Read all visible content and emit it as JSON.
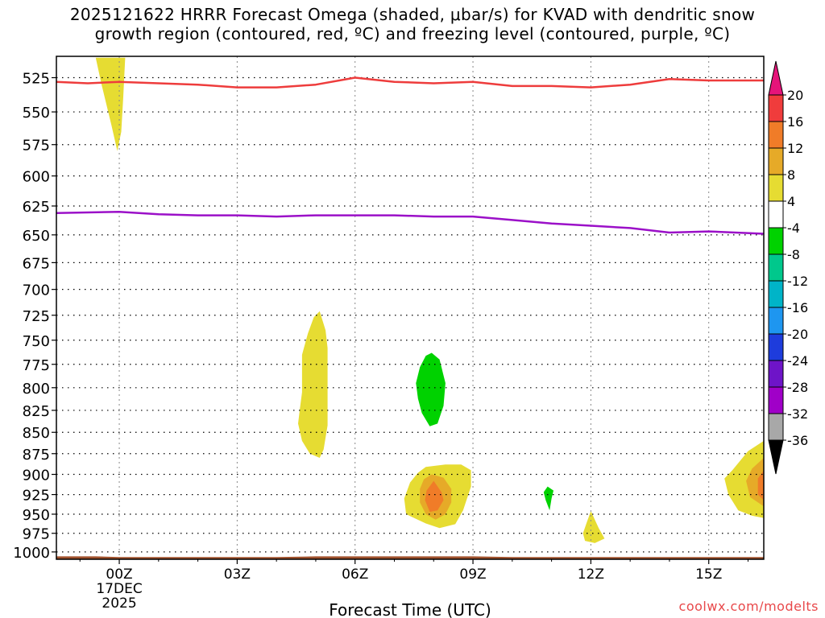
{
  "title": {
    "line1": "2025121622 HRRR Forecast Omega (shaded, μbar/s) for KVAD with dendritic snow",
    "line2": "growth region (contoured, red, ºC) and freezing level (contoured, purple, ºC)"
  },
  "site_url": "coolwx.com/modelts",
  "chart_data": {
    "type": "heatmap",
    "xlabel": "Forecast Time (UTC)",
    "ylabel": "",
    "x_unit": "forecast hour from 00Z 17DEC 2025",
    "xlim": [
      -1.6,
      16.4
    ],
    "ylim": [
      1010,
      510
    ],
    "y_scale": "log-pressure (hPa)",
    "grid": true,
    "x_ticks": [
      {
        "x": 0,
        "label": "00Z",
        "sublabels": [
          "17DEC",
          "2025"
        ]
      },
      {
        "x": 3,
        "label": "03Z"
      },
      {
        "x": 6,
        "label": "06Z"
      },
      {
        "x": 9,
        "label": "09Z"
      },
      {
        "x": 12,
        "label": "12Z"
      },
      {
        "x": 15,
        "label": "15Z"
      }
    ],
    "y_ticks": [
      "525",
      "550",
      "575",
      "600",
      "625",
      "650",
      "675",
      "700",
      "725",
      "750",
      "775",
      "800",
      "825",
      "850",
      "875",
      "900",
      "925",
      "950",
      "975",
      "1000"
    ],
    "colorbar": {
      "labels": [
        "20",
        "16",
        "12",
        "8",
        "4",
        "-4",
        "-8",
        "-12",
        "-16",
        "-20",
        "-24",
        "-28",
        "-32",
        "-36"
      ],
      "colors": [
        "#e6005a",
        "#f03c3c",
        "#f07c28",
        "#e6aa28",
        "#e6dc32",
        "#ffffff",
        "#00d200",
        "#00c88c",
        "#00b4c8",
        "#1e96f0",
        "#1e3cdc",
        "#6e14c8",
        "#a000c8",
        "#a8a8a8",
        "#000000"
      ],
      "top_triangle_color": "#e6147a",
      "bottom_triangle_color": "#000000"
    },
    "series": [
      {
        "kind": "line",
        "color": "#ee3c3c",
        "points": [
          [
            -1.6,
            528
          ],
          [
            -0.8,
            529
          ],
          [
            0,
            528
          ],
          [
            1,
            529
          ],
          [
            2,
            530
          ],
          [
            3,
            532
          ],
          [
            4,
            532
          ],
          [
            5,
            530
          ],
          [
            6,
            525
          ],
          [
            7,
            528
          ],
          [
            8,
            529
          ],
          [
            9,
            528
          ],
          [
            10,
            531
          ],
          [
            11,
            531
          ],
          [
            12,
            532
          ],
          [
            13,
            530
          ],
          [
            14,
            526
          ],
          [
            15,
            527
          ],
          [
            16.4,
            527
          ]
        ]
      },
      {
        "kind": "line",
        "color": "#9b10c8",
        "points": [
          [
            -1.6,
            631
          ],
          [
            0,
            630
          ],
          [
            1,
            632
          ],
          [
            2,
            633
          ],
          [
            3,
            633
          ],
          [
            4,
            634
          ],
          [
            5,
            633
          ],
          [
            6,
            633
          ],
          [
            7,
            633
          ],
          [
            8,
            634
          ],
          [
            9,
            634
          ],
          [
            10,
            637
          ],
          [
            11,
            640
          ],
          [
            12,
            642
          ],
          [
            13,
            644
          ],
          [
            14,
            648
          ],
          [
            15,
            647
          ],
          [
            16.4,
            649
          ]
        ]
      },
      {
        "kind": "band",
        "label": "surface",
        "color": "#a0522d",
        "points": [
          [
            -1.6,
            1006
          ],
          [
            -0.6,
            1006
          ],
          [
            0,
            1007
          ],
          [
            3,
            1007
          ],
          [
            4,
            1007
          ],
          [
            5,
            1006
          ],
          [
            6,
            1006
          ],
          [
            7,
            1006
          ],
          [
            8,
            1006
          ],
          [
            9,
            1006
          ],
          [
            10,
            1007
          ],
          [
            12,
            1007
          ],
          [
            16.4,
            1007
          ]
        ]
      },
      {
        "kind": "filled_contour",
        "value": 4,
        "color": "#e6dc32",
        "points": [
          [
            -0.6,
            511
          ],
          [
            0.15,
            511
          ],
          [
            0.1,
            540
          ],
          [
            0.05,
            565
          ],
          [
            -0.05,
            580
          ],
          [
            -0.2,
            560
          ],
          [
            -0.45,
            530
          ]
        ]
      },
      {
        "kind": "filled_contour",
        "value": 4,
        "color": "#e6dc32",
        "points": [
          [
            5.1,
            721
          ],
          [
            5.25,
            740
          ],
          [
            5.3,
            758
          ],
          [
            5.3,
            842
          ],
          [
            5.2,
            870
          ],
          [
            5.1,
            880
          ],
          [
            4.85,
            875
          ],
          [
            4.65,
            860
          ],
          [
            4.55,
            840
          ],
          [
            4.6,
            822
          ],
          [
            4.65,
            805
          ],
          [
            4.65,
            765
          ],
          [
            4.8,
            743
          ],
          [
            4.95,
            727
          ]
        ]
      },
      {
        "kind": "filled_contour",
        "value": -4,
        "color": "#00d200",
        "points": [
          [
            7.95,
            763
          ],
          [
            8.15,
            770
          ],
          [
            8.3,
            795
          ],
          [
            8.25,
            820
          ],
          [
            8.1,
            840
          ],
          [
            7.9,
            843
          ],
          [
            7.7,
            828
          ],
          [
            7.6,
            812
          ],
          [
            7.55,
            795
          ],
          [
            7.65,
            778
          ],
          [
            7.8,
            766
          ]
        ]
      },
      {
        "kind": "filled_contour",
        "value": 4,
        "color": "#e6dc32",
        "points": [
          [
            7.8,
            891
          ],
          [
            8.3,
            888
          ],
          [
            8.7,
            888
          ],
          [
            8.95,
            895
          ],
          [
            8.95,
            915
          ],
          [
            8.75,
            945
          ],
          [
            8.55,
            963
          ],
          [
            8.15,
            968
          ],
          [
            7.8,
            962
          ],
          [
            7.3,
            950
          ],
          [
            7.25,
            930
          ],
          [
            7.4,
            910
          ],
          [
            7.6,
            898
          ]
        ]
      },
      {
        "kind": "filled_contour",
        "value": 8,
        "color": "#e6aa28",
        "points": [
          [
            7.95,
            900
          ],
          [
            8.25,
            904
          ],
          [
            8.45,
            918
          ],
          [
            8.45,
            935
          ],
          [
            8.3,
            950
          ],
          [
            8.05,
            957
          ],
          [
            7.8,
            950
          ],
          [
            7.65,
            935
          ],
          [
            7.65,
            918
          ],
          [
            7.75,
            906
          ]
        ]
      },
      {
        "kind": "filled_contour",
        "value": 12,
        "color": "#f07c28",
        "points": [
          [
            8.0,
            908
          ],
          [
            8.2,
            922
          ],
          [
            8.25,
            932
          ],
          [
            8.1,
            945
          ],
          [
            7.9,
            947
          ],
          [
            7.78,
            932
          ],
          [
            7.82,
            920
          ]
        ]
      },
      {
        "kind": "filled_contour",
        "value": -4,
        "color": "#00d200",
        "points": [
          [
            10.9,
            915
          ],
          [
            11.05,
            920
          ],
          [
            11.0,
            930
          ],
          [
            10.95,
            945
          ],
          [
            10.85,
            932
          ],
          [
            10.8,
            922
          ]
        ]
      },
      {
        "kind": "filled_contour",
        "value": 4,
        "color": "#e6dc32",
        "points": [
          [
            12.0,
            946
          ],
          [
            12.2,
            968
          ],
          [
            12.35,
            982
          ],
          [
            12.1,
            988
          ],
          [
            11.85,
            985
          ],
          [
            11.8,
            975
          ],
          [
            11.9,
            960
          ]
        ]
      },
      {
        "kind": "filled_contour",
        "value": 4,
        "color": "#e6dc32",
        "points": [
          [
            16.4,
            860
          ],
          [
            16.0,
            872
          ],
          [
            15.6,
            895
          ],
          [
            15.4,
            905
          ],
          [
            15.5,
            925
          ],
          [
            15.75,
            945
          ],
          [
            16.1,
            952
          ],
          [
            16.4,
            955
          ]
        ]
      },
      {
        "kind": "filled_contour",
        "value": 8,
        "color": "#e6aa28",
        "points": [
          [
            16.4,
            880
          ],
          [
            16.1,
            893
          ],
          [
            15.95,
            908
          ],
          [
            16.05,
            928
          ],
          [
            16.4,
            940
          ]
        ]
      },
      {
        "kind": "filled_contour",
        "value": 12,
        "color": "#f07c28",
        "points": [
          [
            16.4,
            895
          ],
          [
            16.25,
            905
          ],
          [
            16.25,
            925
          ],
          [
            16.4,
            932
          ]
        ]
      }
    ]
  }
}
